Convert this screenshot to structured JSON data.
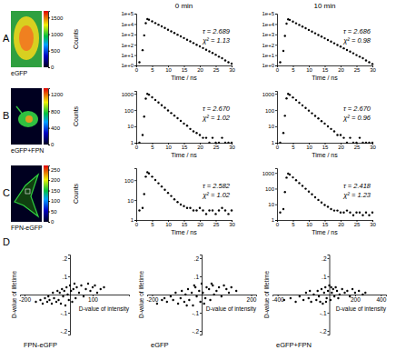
{
  "panel_labels": [
    "A",
    "B",
    "C",
    "D"
  ],
  "column_titles": [
    "0 min",
    "10 min"
  ],
  "images": [
    {
      "caption": "eGFP",
      "colorbar": {
        "label": "Counts",
        "range": [
          0,
          1700
        ],
        "ticks": [
          0,
          500,
          1000,
          1500
        ]
      }
    },
    {
      "caption": "eGFP+FPN",
      "colorbar": {
        "label": "Counts",
        "range": [
          0,
          1350
        ],
        "ticks": [
          0,
          400,
          800,
          1200
        ]
      }
    },
    {
      "caption": "FPN-eGFP",
      "colorbar": {
        "label": "Counts",
        "range": [
          0,
          270
        ],
        "ticks": [
          0,
          50,
          100,
          150,
          200,
          250
        ]
      }
    }
  ],
  "chart_data": [
    {
      "type": "scatter",
      "x_label": "Time / ns",
      "log": "y",
      "color": "#000000",
      "marker": "circle",
      "x": [
        1,
        2,
        2.5,
        3,
        3.5,
        4,
        5,
        6,
        7,
        8,
        9,
        10,
        11,
        12,
        13,
        14,
        15,
        16,
        17,
        18,
        19,
        20,
        21,
        22,
        23,
        24,
        25,
        26,
        27,
        28,
        29,
        30
      ],
      "values": [
        2,
        30,
        800,
        12000,
        30000,
        26000,
        18000,
        12400,
        8600,
        5900,
        4100,
        2800,
        1950,
        1350,
        930,
        640,
        440,
        305,
        210,
        145,
        100,
        70,
        48,
        33,
        23,
        16,
        11,
        7,
        5,
        3,
        2,
        1.5
      ],
      "xlim": [
        0,
        30
      ],
      "xticks": [
        0,
        5,
        10,
        15,
        20,
        25,
        30
      ],
      "ylim": [
        1,
        100000
      ],
      "yticks": [
        {
          "value": 1,
          "label": "1e+0"
        },
        {
          "value": 10,
          "label": "1e+1"
        },
        {
          "value": 100,
          "label": "1e+2"
        },
        {
          "value": 1000,
          "label": "1e+3"
        },
        {
          "value": 10000,
          "label": "1e+4"
        },
        {
          "value": 100000,
          "label": "1e+5"
        }
      ],
      "annotations": [
        "τ = 2.689",
        "χ² = 1.13"
      ]
    },
    {
      "type": "scatter",
      "x_label": "Time / ns",
      "log": "y",
      "color": "#000000",
      "marker": "circle",
      "x": [
        1,
        2,
        2.5,
        3,
        3.5,
        4,
        5,
        6,
        7,
        8,
        9,
        10,
        11,
        12,
        13,
        14,
        15,
        16,
        17,
        18,
        19,
        20,
        21,
        22,
        23,
        24,
        25,
        26,
        27,
        28,
        29,
        30
      ],
      "values": [
        2,
        25,
        700,
        11000,
        28000,
        25000,
        17000,
        11800,
        8200,
        5600,
        3900,
        2700,
        1850,
        1280,
        880,
        610,
        420,
        290,
        200,
        138,
        95,
        66,
        45,
        31,
        22,
        15,
        10,
        7,
        5,
        3,
        2,
        1.4
      ],
      "xlim": [
        0,
        30
      ],
      "xticks": [
        0,
        5,
        10,
        15,
        20,
        25,
        30
      ],
      "ylim": [
        1,
        100000
      ],
      "yticks": [
        {
          "value": 1,
          "label": "1e+0"
        },
        {
          "value": 10,
          "label": "1e+1"
        },
        {
          "value": 100,
          "label": "1e+2"
        },
        {
          "value": 1000,
          "label": "1e+3"
        },
        {
          "value": 10000,
          "label": "1e+4"
        },
        {
          "value": 100000,
          "label": "1e+5"
        }
      ],
      "annotations": [
        "τ = 2.686",
        "χ² = 0.98"
      ]
    },
    {
      "type": "scatter",
      "x_label": "Time / ns",
      "log": "y",
      "color": "#000000",
      "marker": "circle",
      "x": [
        1,
        2,
        2.5,
        3,
        3.5,
        4,
        5,
        6,
        7,
        8,
        9,
        10,
        11,
        12,
        13,
        14,
        15,
        16,
        17,
        18,
        19,
        20,
        21,
        22,
        23,
        24,
        25,
        26,
        27,
        28,
        29,
        30
      ],
      "values": [
        1,
        3,
        40,
        500,
        1000,
        880,
        610,
        420,
        290,
        200,
        140,
        95,
        66,
        46,
        32,
        22,
        15,
        11,
        7,
        5,
        4,
        3,
        2,
        2,
        1,
        2,
        1,
        1,
        2,
        1,
        1,
        1
      ],
      "xlim": [
        0,
        30
      ],
      "xticks": [
        0,
        5,
        10,
        15,
        20,
        25,
        30
      ],
      "ylim": [
        1,
        1500
      ],
      "yticks": [
        1,
        10,
        100,
        1000
      ],
      "annotations": [
        "τ = 2.670",
        "χ² = 1.02"
      ]
    },
    {
      "type": "scatter",
      "x_label": "Time / ns",
      "log": "y",
      "color": "#000000",
      "marker": "circle",
      "x": [
        1,
        2,
        2.5,
        3,
        3.5,
        4,
        5,
        6,
        7,
        8,
        9,
        10,
        11,
        12,
        13,
        14,
        15,
        16,
        17,
        18,
        19,
        20,
        21,
        22,
        23,
        24,
        25,
        26,
        27,
        28,
        29,
        30
      ],
      "values": [
        1,
        4,
        45,
        520,
        980,
        860,
        600,
        410,
        285,
        195,
        135,
        93,
        64,
        44,
        31,
        21,
        15,
        10,
        7,
        5,
        3,
        3,
        2,
        1,
        2,
        1,
        1,
        2,
        1,
        1,
        1,
        1
      ],
      "xlim": [
        0,
        30
      ],
      "xticks": [
        0,
        5,
        10,
        15,
        20,
        25,
        30
      ],
      "ylim": [
        1,
        1500
      ],
      "yticks": [
        1,
        10,
        100,
        1000
      ],
      "annotations": [
        "τ = 2.670",
        "χ² = 0.96"
      ]
    },
    {
      "type": "scatter",
      "x_label": "Time / ns",
      "log": "y",
      "color": "#000000",
      "marker": "circle",
      "x": [
        1,
        2,
        2.5,
        3,
        3.5,
        4,
        5,
        6,
        7,
        8,
        9,
        10,
        11,
        12,
        13,
        14,
        15,
        16,
        17,
        18,
        19,
        20,
        21,
        22,
        23,
        24,
        25,
        26,
        27,
        28,
        29,
        30
      ],
      "values": [
        3,
        4,
        20,
        150,
        250,
        220,
        150,
        102,
        70,
        48,
        33,
        23,
        16,
        11,
        8,
        6,
        5,
        4,
        4,
        3,
        3,
        4,
        3,
        2,
        3,
        3,
        2,
        3,
        4,
        3,
        2,
        3
      ],
      "xlim": [
        0,
        30
      ],
      "xticks": [
        0,
        5,
        10,
        15,
        20,
        25,
        30
      ],
      "ylim": [
        1,
        400
      ],
      "yticks": [
        1,
        10,
        100
      ],
      "annotations": [
        "τ = 2.582",
        "χ² = 1.02"
      ]
    },
    {
      "type": "scatter",
      "x_label": "Time / ns",
      "log": "y",
      "color": "#000000",
      "marker": "circle",
      "x": [
        1,
        2,
        2.5,
        3,
        3.5,
        4,
        5,
        6,
        7,
        8,
        9,
        10,
        11,
        12,
        13,
        14,
        15,
        16,
        17,
        18,
        19,
        20,
        21,
        22,
        23,
        24,
        25,
        26,
        27,
        28,
        29,
        30
      ],
      "values": [
        3,
        5,
        60,
        500,
        900,
        780,
        520,
        340,
        225,
        150,
        98,
        65,
        43,
        28,
        19,
        13,
        9,
        7,
        5,
        4,
        4,
        3,
        3,
        4,
        3,
        2,
        3,
        3,
        2,
        3,
        2,
        3
      ],
      "xlim": [
        0,
        30
      ],
      "xticks": [
        0,
        5,
        10,
        15,
        20,
        25,
        30
      ],
      "ylim": [
        1,
        2000
      ],
      "yticks": [
        1,
        10,
        100,
        1000
      ],
      "annotations": [
        "τ = 2.418",
        "χ² = 1.23"
      ]
    },
    {
      "type": "scatter",
      "title": "FPN-eGFP",
      "x_label": "D-value of intensity",
      "y_label": "D-value of lifetime",
      "color": "#000000",
      "marker": "circle",
      "x": [
        -150,
        -130,
        -120,
        -110,
        -100,
        -95,
        -90,
        -80,
        -75,
        -70,
        -60,
        -55,
        -50,
        -45,
        -40,
        -35,
        -30,
        -25,
        -20,
        -15,
        -10,
        -5,
        0,
        5,
        10,
        15,
        20,
        25,
        30,
        40,
        50,
        60,
        70,
        80,
        90,
        100,
        110,
        120,
        135,
        150
      ],
      "values": [
        -0.04,
        -0.03,
        -0.05,
        -0.02,
        -0.04,
        -0.01,
        -0.03,
        -0.05,
        0.01,
        -0.02,
        -0.04,
        0.02,
        -0.03,
        0.01,
        -0.05,
        0.03,
        -0.01,
        0.02,
        -0.06,
        0.04,
        0.0,
        -0.03,
        0.05,
        0.02,
        -0.04,
        0.03,
        0.06,
        -0.02,
        0.04,
        0.01,
        0.05,
        -0.01,
        0.03,
        0.06,
        0.02,
        0.04,
        0.05,
        0.01,
        0.03,
        0.04
      ],
      "xlim": [
        -220,
        260
      ],
      "xticks": [
        -200,
        100
      ],
      "ylim": [
        -0.22,
        0.22
      ],
      "yticks": [
        {
          "value": 0.2,
          "label": ".2"
        },
        {
          "value": 0.1,
          "label": ".1"
        },
        {
          "value": -0.1,
          "label": "-.1"
        },
        {
          "value": -0.2,
          "label": "-.2"
        }
      ]
    },
    {
      "type": "scatter",
      "title": "eGFP",
      "x_label": "D-value of intensity",
      "y_label": "D-value of lifetime",
      "color": "#000000",
      "marker": "circle",
      "x": [
        -180,
        -160,
        -150,
        -140,
        -125,
        -115,
        -105,
        -95,
        -85,
        -80,
        -70,
        -65,
        -55,
        -50,
        -40,
        -35,
        -25,
        -20,
        -10,
        -5,
        0,
        5,
        15,
        20,
        30,
        35,
        45,
        50,
        60,
        70,
        80,
        90,
        100,
        110,
        120,
        140,
        -60,
        -30,
        10,
        40
      ],
      "values": [
        -0.05,
        -0.03,
        -0.02,
        -0.04,
        -0.01,
        -0.03,
        0.01,
        -0.05,
        -0.02,
        0.02,
        -0.04,
        0.0,
        0.03,
        -0.03,
        0.01,
        -0.06,
        0.04,
        -0.01,
        0.02,
        -0.04,
        0.06,
        0.01,
        -0.02,
        0.04,
        0.03,
        -0.03,
        0.05,
        0.0,
        0.02,
        0.04,
        -0.01,
        0.05,
        0.03,
        0.01,
        0.04,
        0.02,
        -0.06,
        0.05,
        -0.05,
        0.06
      ],
      "xlim": [
        -220,
        220
      ],
      "xticks": [
        -200,
        200
      ],
      "ylim": [
        -0.22,
        0.22
      ],
      "yticks": [
        {
          "value": 0.2,
          "label": ".2"
        },
        {
          "value": 0.1,
          "label": ".1"
        },
        {
          "value": -0.1,
          "label": "-.1"
        },
        {
          "value": -0.2,
          "label": "-.2"
        }
      ]
    },
    {
      "type": "scatter",
      "title": "eGFP+FPN",
      "x_label": "D-value of intensity",
      "y_label": "D-value of lifetime",
      "color": "#000000",
      "marker": "circle",
      "x": [
        -350,
        -300,
        -260,
        -230,
        -200,
        -180,
        -160,
        -140,
        -120,
        -100,
        -90,
        -80,
        -60,
        -50,
        -40,
        -30,
        -20,
        -10,
        0,
        10,
        20,
        30,
        40,
        50,
        60,
        80,
        100,
        120,
        140,
        160,
        180,
        200,
        230,
        260,
        280,
        -70,
        -25,
        15,
        70,
        -150
      ],
      "values": [
        -0.03,
        -0.02,
        -0.04,
        -0.01,
        -0.03,
        0.01,
        -0.02,
        -0.04,
        0.0,
        -0.03,
        0.02,
        -0.01,
        0.03,
        -0.05,
        0.01,
        0.04,
        -0.02,
        0.02,
        0.05,
        -0.03,
        0.01,
        0.03,
        -0.01,
        0.04,
        0.02,
        0.0,
        0.03,
        0.01,
        0.02,
        -0.01,
        0.03,
        0.01,
        0.02,
        0.0,
        0.01,
        -0.04,
        -0.04,
        0.04,
        -0.02,
        0.02
      ],
      "xlim": [
        -440,
        440
      ],
      "xticks": [
        -400,
        200,
        400
      ],
      "ylim": [
        -0.22,
        0.22
      ],
      "yticks": [
        {
          "value": 0.2,
          "label": ".2"
        },
        {
          "value": 0.1,
          "label": ".1"
        },
        {
          "value": -0.1,
          "label": "-.1"
        },
        {
          "value": -0.2,
          "label": "-.2"
        }
      ]
    }
  ]
}
